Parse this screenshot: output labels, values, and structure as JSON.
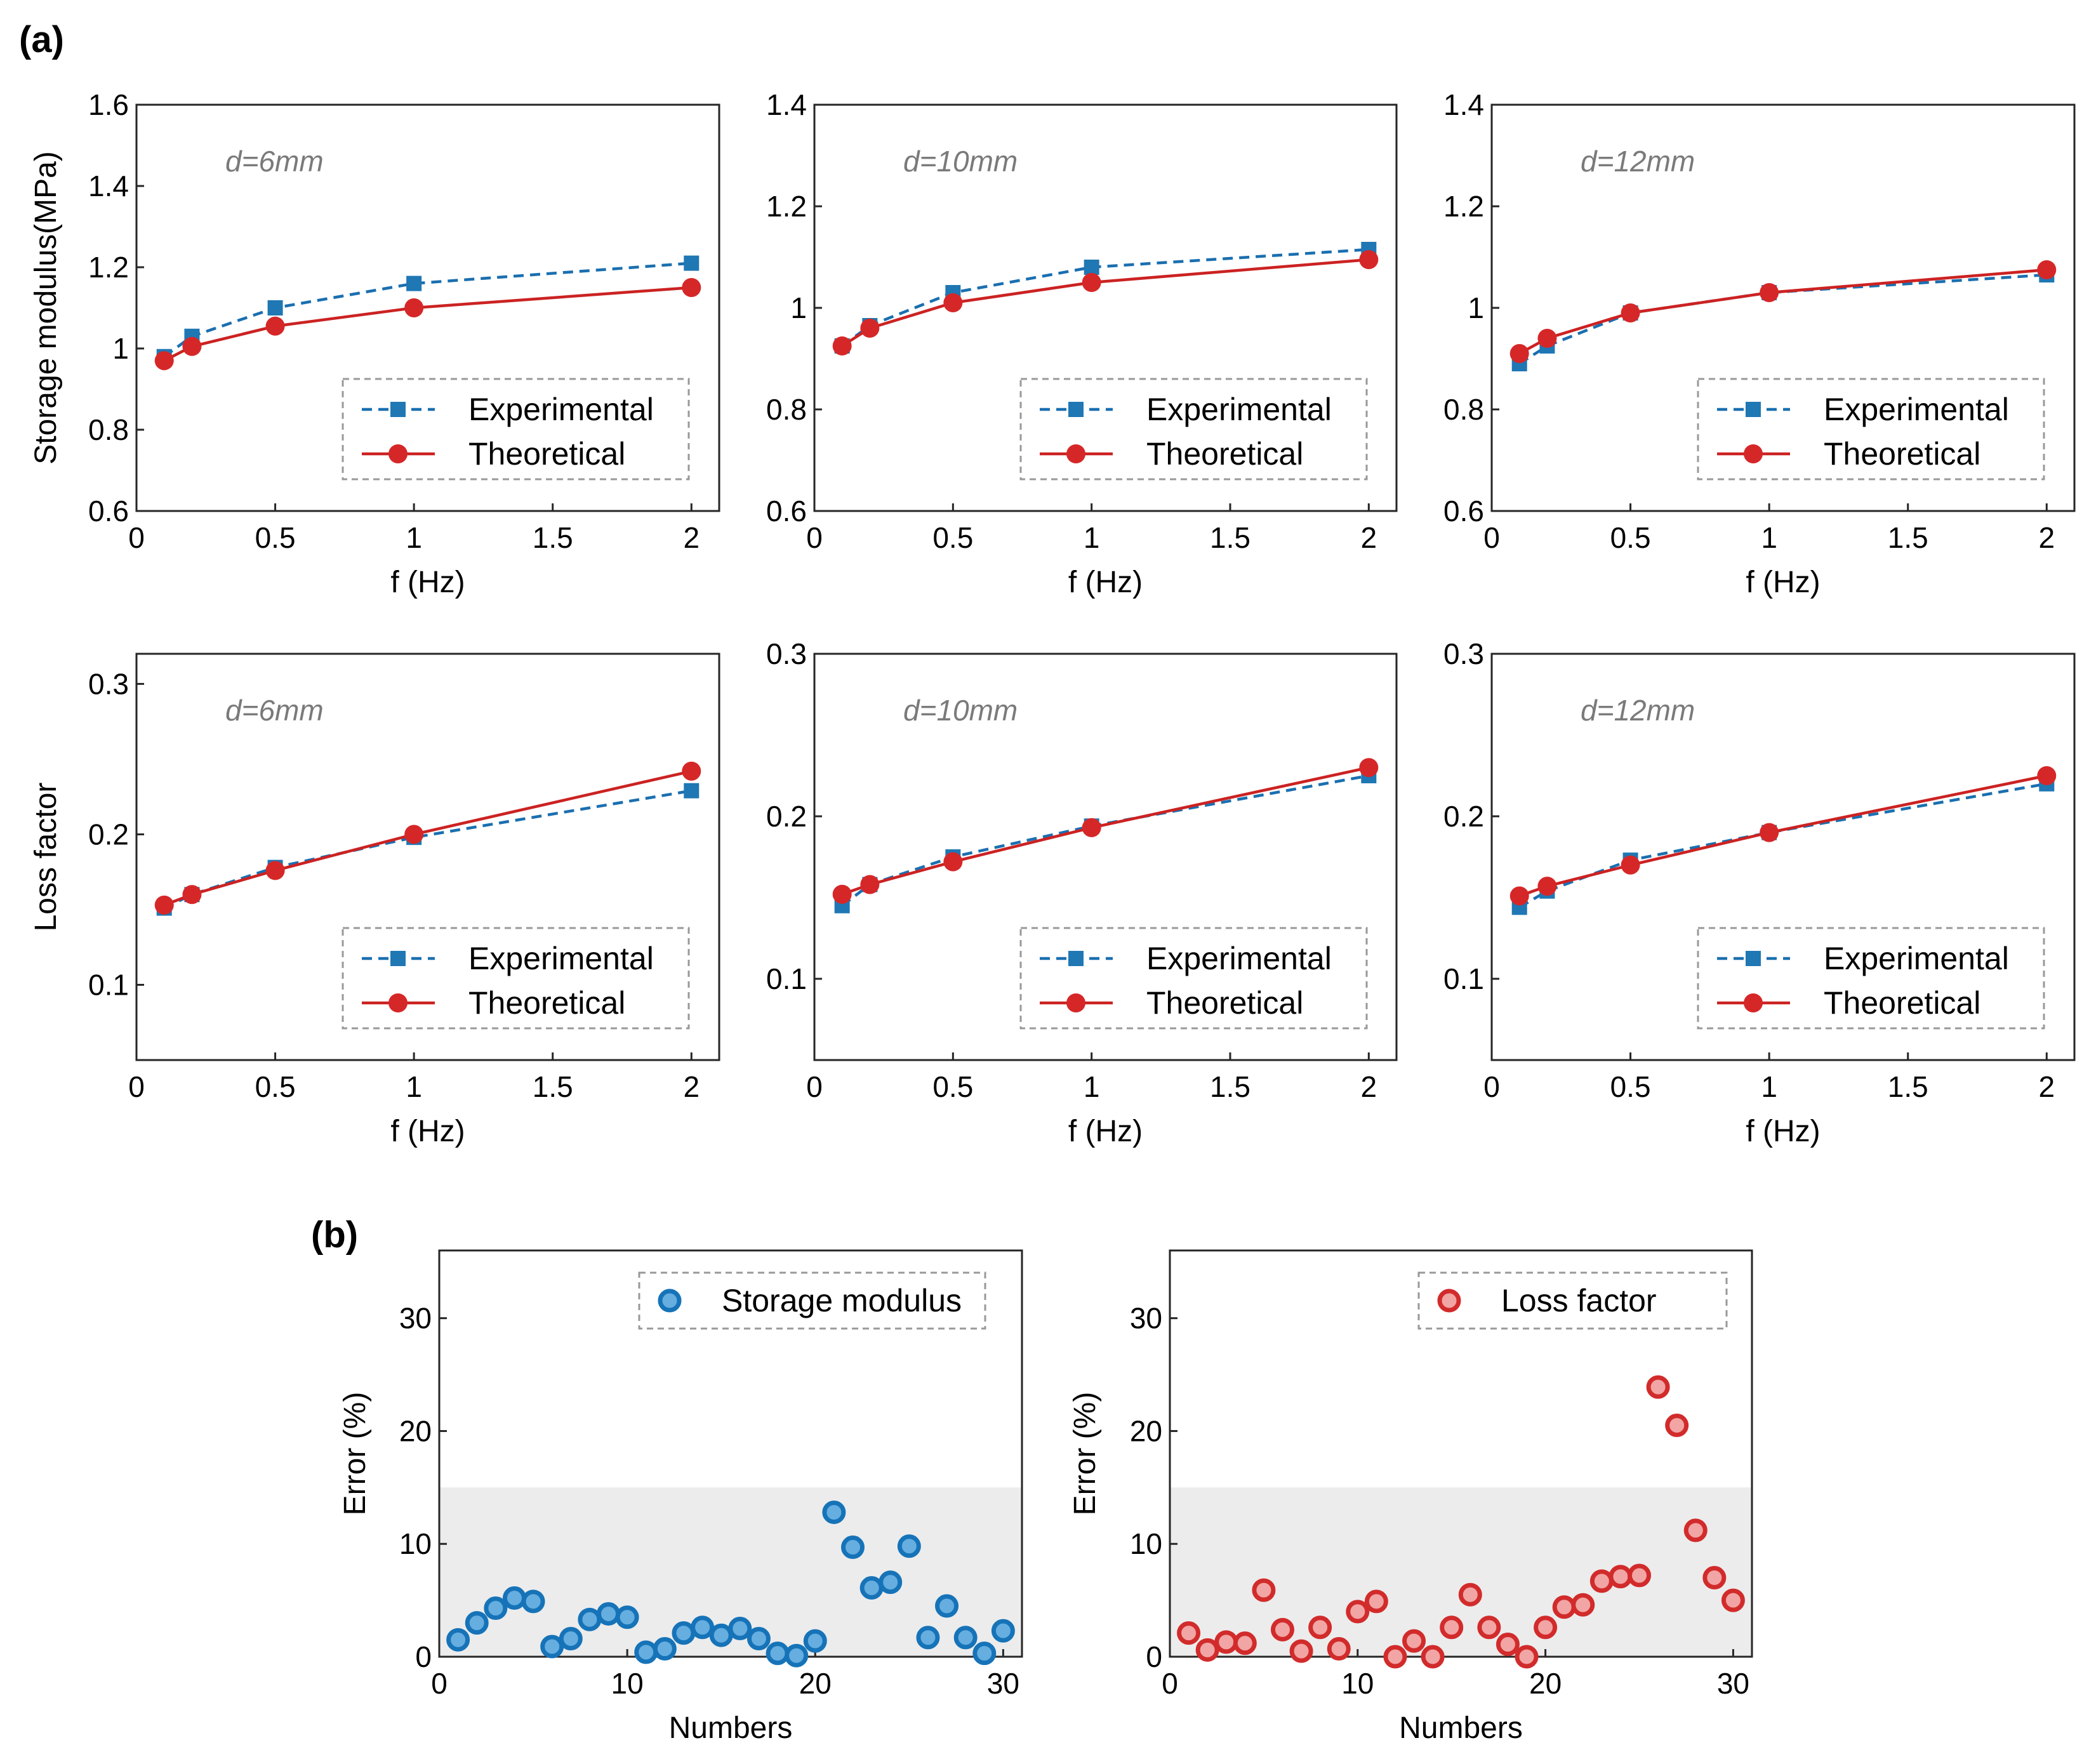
{
  "figure": {
    "panel_a_label": "(a)",
    "panel_b_label": "(b)"
  },
  "colors": {
    "experimental": "#1f77b4",
    "theoretical": "#d62728",
    "experimental_line": "#1a6fb0",
    "theoretical_line": "#cc2222",
    "error_storage_fill": "#66aee0",
    "error_storage_edge": "#1673b8",
    "error_loss_fill": "#f2a5a5",
    "error_loss_edge": "#d22b2b",
    "shade": "#ececec",
    "legend_border": "#999999"
  },
  "chart_data": [
    {
      "id": "sm_d6",
      "type": "line",
      "annotation": "d=6mm",
      "xlabel": "f (Hz)",
      "ylabel": "Storage modulus(MPa)",
      "xlim": [
        0,
        2.1
      ],
      "ylim": [
        0.6,
        1.6
      ],
      "xticks": [
        0,
        0.5,
        1,
        1.5,
        2
      ],
      "xtick_labels": [
        "0",
        "0.5",
        "1",
        "1.5",
        "2"
      ],
      "yticks": [
        0.6,
        0.8,
        1,
        1.2,
        1.4,
        1.6
      ],
      "ytick_labels": [
        "0.6",
        "0.8",
        "1",
        "1.2",
        "1.4",
        "1.6"
      ],
      "legend": [
        "Experimental",
        "Theoretical"
      ],
      "x": [
        0.1,
        0.2,
        0.5,
        1,
        2
      ],
      "series": [
        {
          "name": "Experimental",
          "values": [
            0.98,
            1.03,
            1.1,
            1.16,
            1.21
          ]
        },
        {
          "name": "Theoretical",
          "values": [
            0.97,
            1.005,
            1.055,
            1.1,
            1.15
          ]
        }
      ]
    },
    {
      "id": "sm_d10",
      "type": "line",
      "annotation": "d=10mm",
      "xlabel": "f (Hz)",
      "ylabel": "",
      "xlim": [
        0,
        2.1
      ],
      "ylim": [
        0.6,
        1.4
      ],
      "xticks": [
        0,
        0.5,
        1,
        1.5,
        2
      ],
      "xtick_labels": [
        "0",
        "0.5",
        "1",
        "1.5",
        "2"
      ],
      "yticks": [
        0.6,
        0.8,
        1,
        1.2,
        1.4
      ],
      "ytick_labels": [
        "0.6",
        "0.8",
        "1",
        "1.2",
        "1.4"
      ],
      "legend": [
        "Experimental",
        "Theoretical"
      ],
      "x": [
        0.1,
        0.2,
        0.5,
        1,
        2
      ],
      "series": [
        {
          "name": "Experimental",
          "values": [
            0.925,
            0.965,
            1.03,
            1.08,
            1.115
          ]
        },
        {
          "name": "Theoretical",
          "values": [
            0.925,
            0.96,
            1.01,
            1.05,
            1.095
          ]
        }
      ]
    },
    {
      "id": "sm_d12",
      "type": "line",
      "annotation": "d=12mm",
      "xlabel": "f (Hz)",
      "ylabel": "",
      "xlim": [
        0,
        2.1
      ],
      "ylim": [
        0.6,
        1.4
      ],
      "xticks": [
        0,
        0.5,
        1,
        1.5,
        2
      ],
      "xtick_labels": [
        "0",
        "0.5",
        "1",
        "1.5",
        "2"
      ],
      "yticks": [
        0.6,
        0.8,
        1,
        1.2,
        1.4
      ],
      "ytick_labels": [
        "0.6",
        "0.8",
        "1",
        "1.2",
        "1.4"
      ],
      "legend": [
        "Experimental",
        "Theoretical"
      ],
      "x": [
        0.1,
        0.2,
        0.5,
        1,
        2
      ],
      "series": [
        {
          "name": "Experimental",
          "values": [
            0.89,
            0.925,
            0.99,
            1.03,
            1.065
          ]
        },
        {
          "name": "Theoretical",
          "values": [
            0.91,
            0.94,
            0.99,
            1.03,
            1.075
          ]
        }
      ]
    },
    {
      "id": "lf_d6",
      "type": "line",
      "annotation": "d=6mm",
      "xlabel": "f (Hz)",
      "ylabel": "Loss factor",
      "xlim": [
        0,
        2.1
      ],
      "ylim": [
        0.05,
        0.32
      ],
      "xticks": [
        0,
        0.5,
        1,
        1.5,
        2
      ],
      "xtick_labels": [
        "0",
        "0.5",
        "1",
        "1.5",
        "2"
      ],
      "yticks": [
        0.1,
        0.2,
        0.3
      ],
      "ytick_labels": [
        "0.1",
        "0.2",
        "0.3"
      ],
      "legend": [
        "Experimental",
        "Theoretical"
      ],
      "x": [
        0.1,
        0.2,
        0.5,
        1,
        2
      ],
      "series": [
        {
          "name": "Experimental",
          "values": [
            0.151,
            0.16,
            0.178,
            0.198,
            0.229
          ]
        },
        {
          "name": "Theoretical",
          "values": [
            0.153,
            0.16,
            0.176,
            0.2,
            0.242
          ]
        }
      ]
    },
    {
      "id": "lf_d10",
      "type": "line",
      "annotation": "d=10mm",
      "xlabel": "f (Hz)",
      "ylabel": "",
      "xlim": [
        0,
        2.1
      ],
      "ylim": [
        0.05,
        0.3
      ],
      "xticks": [
        0,
        0.5,
        1,
        1.5,
        2
      ],
      "xtick_labels": [
        "0",
        "0.5",
        "1",
        "1.5",
        "2"
      ],
      "yticks": [
        0.1,
        0.2,
        0.3
      ],
      "ytick_labels": [
        "0.1",
        "0.2",
        "0.3"
      ],
      "legend": [
        "Experimental",
        "Theoretical"
      ],
      "x": [
        0.1,
        0.2,
        0.5,
        1,
        2
      ],
      "series": [
        {
          "name": "Experimental",
          "values": [
            0.145,
            0.158,
            0.175,
            0.194,
            0.225
          ]
        },
        {
          "name": "Theoretical",
          "values": [
            0.152,
            0.158,
            0.172,
            0.193,
            0.23
          ]
        }
      ]
    },
    {
      "id": "lf_d12",
      "type": "line",
      "annotation": "d=12mm",
      "xlabel": "f (Hz)",
      "ylabel": "",
      "xlim": [
        0,
        2.1
      ],
      "ylim": [
        0.05,
        0.3
      ],
      "xticks": [
        0,
        0.5,
        1,
        1.5,
        2
      ],
      "xtick_labels": [
        "0",
        "0.5",
        "1",
        "1.5",
        "2"
      ],
      "yticks": [
        0.1,
        0.2,
        0.3
      ],
      "ytick_labels": [
        "0.1",
        "0.2",
        "0.3"
      ],
      "legend": [
        "Experimental",
        "Theoretical"
      ],
      "x": [
        0.1,
        0.2,
        0.5,
        1,
        2
      ],
      "series": [
        {
          "name": "Experimental",
          "values": [
            0.144,
            0.154,
            0.173,
            0.19,
            0.22
          ]
        },
        {
          "name": "Theoretical",
          "values": [
            0.151,
            0.157,
            0.17,
            0.19,
            0.225
          ]
        }
      ]
    },
    {
      "id": "err_storage",
      "type": "scatter",
      "xlabel": "Numbers",
      "ylabel": "Error (%)",
      "xlim": [
        0,
        31
      ],
      "ylim": [
        0,
        36
      ],
      "xticks": [
        0,
        10,
        20,
        30
      ],
      "xtick_labels": [
        "0",
        "10",
        "20",
        "30"
      ],
      "yticks": [
        0,
        10,
        20,
        30
      ],
      "ytick_labels": [
        "0",
        "10",
        "20",
        "30"
      ],
      "shaded_band": [
        0,
        15
      ],
      "legend": [
        "Storage modulus"
      ],
      "x": [
        1,
        2,
        3,
        4,
        5,
        6,
        7,
        8,
        9,
        10,
        11,
        12,
        13,
        14,
        15,
        16,
        17,
        18,
        19,
        20,
        21,
        22,
        23,
        24,
        25,
        26,
        27,
        28,
        29,
        30
      ],
      "values": [
        1.5,
        3,
        4.3,
        5.2,
        4.9,
        0.9,
        1.6,
        3.3,
        3.8,
        3.5,
        0.4,
        0.7,
        2.1,
        2.6,
        1.9,
        2.5,
        1.6,
        0.3,
        0.1,
        1.4,
        12.8,
        9.7,
        6.1,
        6.6,
        9.8,
        1.7,
        4.5,
        1.7,
        0.3,
        2.3
      ]
    },
    {
      "id": "err_loss",
      "type": "scatter",
      "xlabel": "Numbers",
      "ylabel": "Error (%)",
      "xlim": [
        0,
        31
      ],
      "ylim": [
        0,
        36
      ],
      "xticks": [
        0,
        10,
        20,
        30
      ],
      "xtick_labels": [
        "0",
        "10",
        "20",
        "30"
      ],
      "yticks": [
        0,
        10,
        20,
        30
      ],
      "ytick_labels": [
        "0",
        "10",
        "20",
        "30"
      ],
      "shaded_band": [
        0,
        15
      ],
      "legend": [
        "Loss factor"
      ],
      "x": [
        1,
        2,
        3,
        4,
        5,
        6,
        7,
        8,
        9,
        10,
        11,
        12,
        13,
        14,
        15,
        16,
        17,
        18,
        19,
        20,
        21,
        22,
        23,
        24,
        25,
        26,
        27,
        28,
        29,
        30
      ],
      "values": [
        2.1,
        0.6,
        1.3,
        1.2,
        5.9,
        2.4,
        0.5,
        2.6,
        0.7,
        4,
        4.9,
        0,
        1.4,
        0,
        2.6,
        5.5,
        2.6,
        1.1,
        0,
        2.6,
        4.4,
        4.6,
        6.7,
        7.1,
        7.2,
        23.9,
        20.5,
        11.2,
        7,
        5
      ]
    }
  ]
}
